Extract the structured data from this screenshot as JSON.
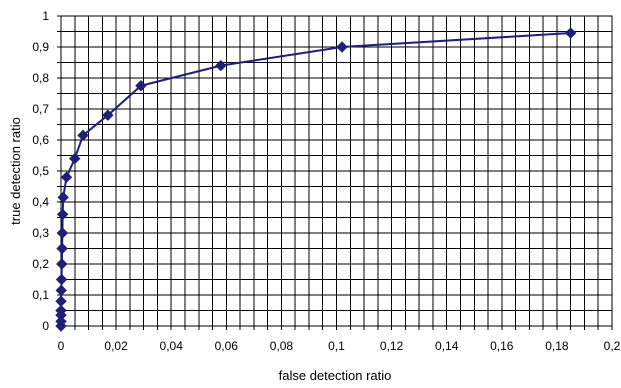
{
  "chart_data": {
    "type": "line",
    "title": "",
    "xlabel": "false detection ratio",
    "ylabel": "true detection ratio",
    "xlim": [
      0,
      0.2
    ],
    "ylim": [
      0,
      1
    ],
    "grid": true,
    "x_ticks": [
      0,
      0.005,
      0.01,
      0.015,
      0.02,
      0.025,
      0.03,
      0.035,
      0.04,
      0.045,
      0.05,
      0.055,
      0.06,
      0.065,
      0.07,
      0.075,
      0.08,
      0.085,
      0.09,
      0.095,
      0.1,
      0.105,
      0.11,
      0.115,
      0.12,
      0.125,
      0.13,
      0.135,
      0.14,
      0.145,
      0.15,
      0.155,
      0.16,
      0.165,
      0.17,
      0.175,
      0.18,
      0.185,
      0.19,
      0.195,
      0.2
    ],
    "x_tick_labels": [
      "0",
      "",
      "",
      "",
      "0,02",
      "",
      "",
      "",
      "0,04",
      "",
      "",
      "",
      "0,06",
      "",
      "",
      "",
      "0,08",
      "",
      "",
      "",
      "0,1",
      "",
      "",
      "",
      "0,12",
      "",
      "",
      "",
      "0,14",
      "",
      "",
      "",
      "0,16",
      "",
      "",
      "",
      "0,18",
      "",
      "",
      "",
      "0,2"
    ],
    "y_ticks": [
      0,
      0.05,
      0.1,
      0.15,
      0.2,
      0.25,
      0.3,
      0.35,
      0.4,
      0.45,
      0.5,
      0.55,
      0.6,
      0.65,
      0.7,
      0.75,
      0.8,
      0.85,
      0.9,
      0.95,
      1
    ],
    "y_tick_labels": [
      "0",
      "",
      "0,1",
      "",
      "0,2",
      "",
      "0,3",
      "",
      "0,4",
      "",
      "0,5",
      "",
      "0,6",
      "",
      "0,7",
      "",
      "0,8",
      "",
      "0,9",
      "",
      "1"
    ],
    "series_color": "#1f1f7a",
    "series": [
      {
        "x": [
          0,
          0,
          0,
          0,
          0,
          0.0001,
          0.0002,
          0.0003,
          0.0004,
          0.0005,
          0.0006,
          0.0008,
          0.002,
          0.005,
          0.008,
          0.017,
          0.029,
          0.058,
          0.102,
          0.185
        ],
        "y": [
          0,
          0.015,
          0.035,
          0.05,
          0.08,
          0.115,
          0.15,
          0.2,
          0.25,
          0.3,
          0.36,
          0.415,
          0.48,
          0.54,
          0.615,
          0.68,
          0.775,
          0.84,
          0.9,
          0.945
        ]
      }
    ]
  }
}
